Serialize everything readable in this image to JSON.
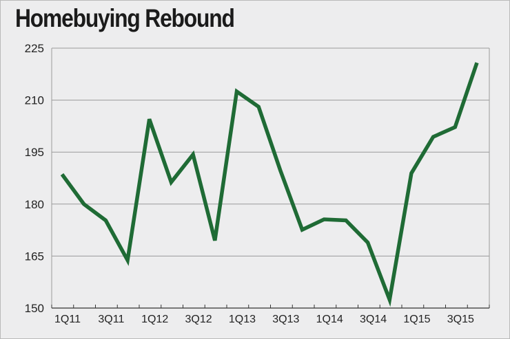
{
  "chart_data": {
    "type": "line",
    "title": "Homebuying Rebound",
    "xlabel": "",
    "ylabel": "",
    "ylim": [
      150,
      225
    ],
    "yticks": [
      150,
      165,
      180,
      195,
      210,
      225
    ],
    "x": [
      "1Q11",
      "2Q11",
      "3Q11",
      "4Q11",
      "1Q12",
      "2Q12",
      "3Q12",
      "4Q12",
      "1Q13",
      "2Q13",
      "3Q13",
      "4Q13",
      "1Q14",
      "2Q14",
      "3Q14",
      "4Q14",
      "1Q15",
      "2Q15",
      "3Q15",
      "4Q15"
    ],
    "xtick_labels": [
      "1Q11",
      "3Q11",
      "1Q12",
      "3Q12",
      "1Q13",
      "3Q13",
      "1Q14",
      "3Q14",
      "1Q15",
      "3Q15"
    ],
    "series": [
      {
        "color": "#1f6b35",
        "values": [
          188.6,
          180.0,
          175.3,
          163.8,
          204.5,
          186.3,
          194.3,
          169.5,
          212.5,
          208.1,
          189.7,
          172.6,
          175.6,
          175.3,
          168.9,
          152.4,
          188.9,
          199.4,
          202.2,
          220.8
        ]
      }
    ],
    "grid": true,
    "legend": "none"
  }
}
